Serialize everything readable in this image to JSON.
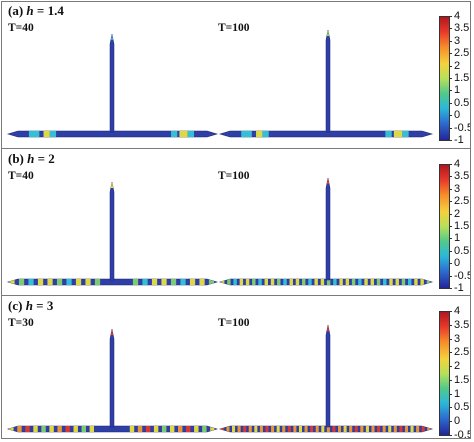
{
  "panels": [
    {
      "label_prefix": "(a) ",
      "label_var": "h",
      "label_eq": " = 1.4",
      "left_time": "T=40",
      "right_time": "T=100",
      "colorbar_ticks": [
        "4",
        "3.5",
        "3",
        "2.5",
        "2",
        "1.5",
        "1",
        "0.5",
        "0",
        "-0.5",
        "-1"
      ],
      "left_pattern": "sparse",
      "right_pattern": "sparse"
    },
    {
      "label_prefix": "(b) ",
      "label_var": "h",
      "label_eq": " = 2",
      "left_time": "T=40",
      "right_time": "T=100",
      "colorbar_ticks": [
        "4",
        "3.5",
        "3",
        "2.5",
        "2",
        "1.5",
        "1",
        "0.5",
        "0",
        "-0.5",
        "-1"
      ],
      "left_pattern": "medium",
      "right_pattern": "dense"
    },
    {
      "label_prefix": "(c) ",
      "label_var": "h",
      "label_eq": " = 3",
      "left_time": "T=30",
      "right_time": "T=100",
      "colorbar_ticks": [
        "4",
        "3.5",
        "3",
        "2.5",
        "2",
        "1.5",
        "1",
        "0.5",
        "0",
        "-0.5"
      ],
      "left_pattern": "warm",
      "right_pattern": "hot"
    }
  ],
  "colors": {
    "base_blue": "#2f3fa8",
    "stripe_cyan": "#33c7d9",
    "stripe_green": "#7fd46a",
    "stripe_yellow": "#e9e13a",
    "stripe_orange": "#f39a2b",
    "stripe_red": "#e03a2a"
  }
}
